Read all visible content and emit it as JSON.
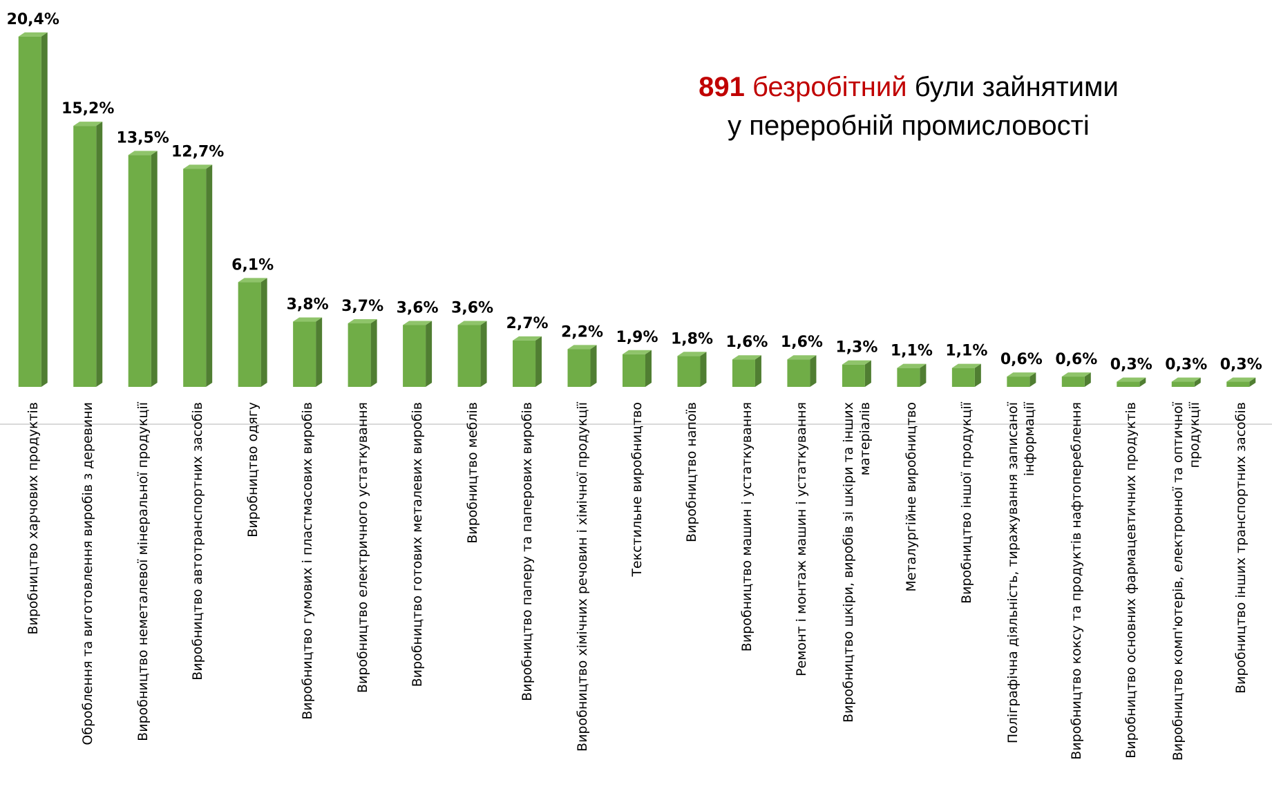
{
  "chart_data": {
    "type": "bar",
    "title": {
      "number": "891",
      "highlight": "безробітний",
      "rest": "були зайнятими",
      "line2": "у переробній промисловості"
    },
    "categories": [
      "Виробництво харчових продуктів",
      "Оброблення та виготовлення виробів з деревини",
      "Виробництво неметалевої мінеральної продукції",
      "Виробництво автотранспортних засобів",
      "Виробництво одягу",
      "Виробництво гумових і пластмасових виробів",
      "Виробництво електричного устаткування",
      "Виробництво готових металевих виробів",
      "Виробництво меблів",
      "Виробництво паперу та паперових виробів",
      "Виробництво хімічних речовин і хімічної продукції",
      "Текстильне виробництво",
      "Виробництво напоїв",
      "Виробництво машин і устаткування",
      "Ремонт і монтаж машин і устаткування",
      "Виробництво шкіри, виробів зі шкіри та інших матеріалів",
      "Металургійне виробництво",
      "Виробництво іншої продукції",
      "Поліграфічна діяльність, тиражування записаної інформації",
      "Виробництво коксу та продуктів нафтопереблення",
      "Виробництво основних фармацевтичних продуктів",
      "Виробництво комп'ютерів, електронної та оптичної продукції",
      "Виробництво інших транспортних засобів"
    ],
    "values": [
      20.4,
      15.2,
      13.5,
      12.7,
      6.1,
      3.8,
      3.7,
      3.6,
      3.6,
      2.7,
      2.2,
      1.9,
      1.8,
      1.6,
      1.6,
      1.3,
      1.1,
      1.1,
      0.6,
      0.6,
      0.3,
      0.3,
      0.3
    ],
    "value_labels": [
      "20,4%",
      "15,2%",
      "13,5%",
      "12,7%",
      "6,1%",
      "3,8%",
      "3,7%",
      "3,6%",
      "3,6%",
      "2,7%",
      "2,2%",
      "1,9%",
      "1,8%",
      "1,6%",
      "1,6%",
      "1,3%",
      "1,1%",
      "1,1%",
      "0,6%",
      "0,6%",
      "0,3%",
      "0,3%",
      "0,3%"
    ],
    "color": "#70ad47",
    "ylim": [
      0,
      21
    ]
  }
}
